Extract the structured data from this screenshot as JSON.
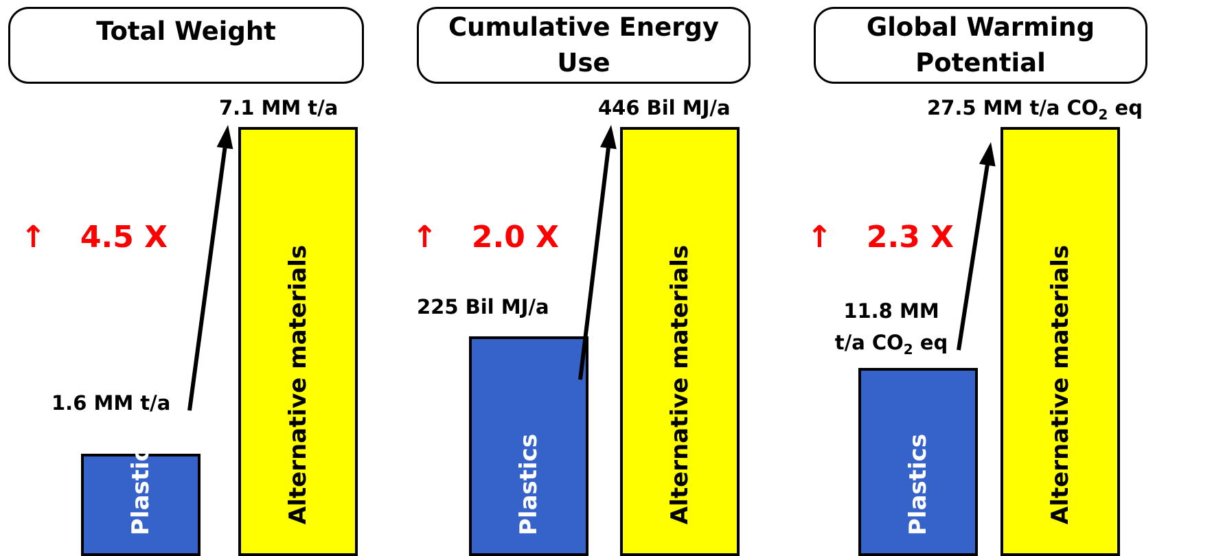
{
  "chart_data": [
    {
      "type": "bar",
      "title": "Total Weight",
      "categories": [
        "Plastics",
        "Alternative materials"
      ],
      "values": [
        1.6,
        7.1
      ],
      "value_labels": [
        "1.6 MM t/a",
        "7.1 MM t/a"
      ],
      "ratio_label": "4.5 X",
      "ratio_arrow": "↑"
    },
    {
      "type": "bar",
      "title": "Cumulative Energy Use",
      "categories": [
        "Plastics",
        "Alternative materials"
      ],
      "values": [
        225,
        446
      ],
      "value_labels": [
        "225 Bil MJ/a",
        "446 Bil MJ/a"
      ],
      "ratio_label": "2.0 X",
      "ratio_arrow": "↑"
    },
    {
      "type": "bar",
      "title": "Global Warming Potential",
      "categories": [
        "Plastics",
        "Alternative materials"
      ],
      "values": [
        11.8,
        27.5
      ],
      "value_labels": [
        "11.8 MM t/a CO2 eq",
        "27.5 MM t/a CO2 eq"
      ],
      "ratio_label": "2.3 X",
      "ratio_arrow": "↑"
    }
  ],
  "colors": {
    "plastics_bar": "#3563c9",
    "alternative_bar": "#ffff00",
    "ratio_text": "#ff0000",
    "plastics_label": "#ffffff",
    "alternative_label": "#000000"
  }
}
